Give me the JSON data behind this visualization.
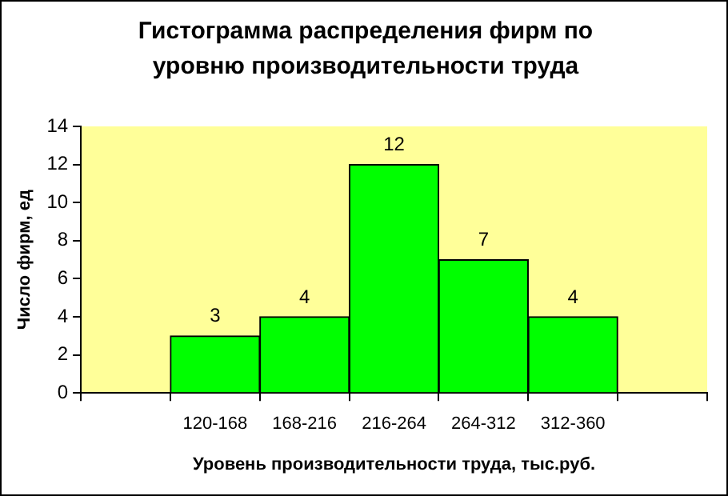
{
  "chart_data": {
    "type": "bar",
    "title": "Гистограмма распределения фирм по уровню производительности труда",
    "xlabel": "Уровень производительности труда, тыс.руб.",
    "ylabel": "Число фирм, ед",
    "categories": [
      null,
      "120-168",
      "168-216",
      "216-264",
      "264-312",
      "312-360",
      null
    ],
    "values": [
      null,
      3,
      4,
      12,
      7,
      4,
      null
    ],
    "color": "#00ff00",
    "ylim": [
      0,
      14
    ],
    "yticks": [
      0,
      2,
      4,
      6,
      8,
      10,
      12,
      14
    ],
    "grid": false,
    "legend": false,
    "data_labels": true
  }
}
